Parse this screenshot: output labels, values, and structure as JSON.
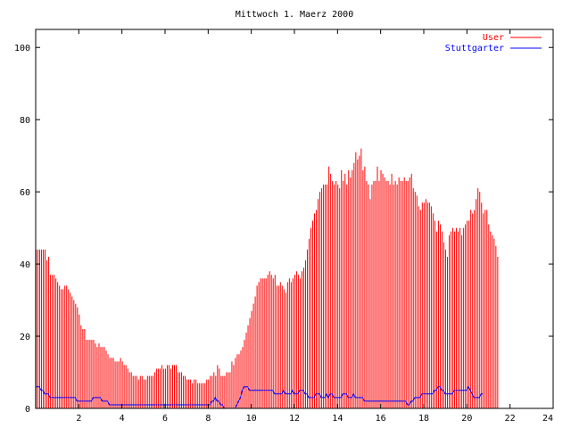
{
  "chart_data": {
    "type": "bar",
    "title": "Mittwoch 1. Maerz 2000",
    "xlabel": "",
    "ylabel": "",
    "xlim": [
      0,
      24
    ],
    "ylim": [
      0,
      105
    ],
    "x_ticks": [
      2,
      4,
      6,
      8,
      10,
      12,
      14,
      16,
      18,
      20,
      22,
      24
    ],
    "y_ticks": [
      0,
      20,
      40,
      60,
      80,
      100
    ],
    "grid": false,
    "legend_position": "top-right",
    "x_step_hours": 0.0833,
    "series": [
      {
        "name": "User",
        "render": "impulses",
        "color": "#ff0000",
        "values": [
          44,
          44,
          44,
          44,
          44,
          44,
          41,
          42,
          37,
          37,
          37,
          36,
          35,
          34,
          33,
          33,
          34,
          34,
          33,
          32,
          31,
          30,
          29,
          28,
          26,
          23,
          22,
          22,
          19,
          19,
          19,
          19,
          19,
          18,
          17,
          18,
          17,
          17,
          17,
          16,
          15,
          14,
          14,
          14,
          13,
          13,
          13,
          14,
          13,
          12,
          12,
          11,
          10,
          10,
          9,
          9,
          9,
          8,
          9,
          9,
          8,
          8,
          9,
          9,
          9,
          9,
          10,
          11,
          11,
          11,
          12,
          11,
          11,
          12,
          12,
          11,
          12,
          12,
          12,
          10,
          10,
          10,
          9,
          9,
          8,
          8,
          8,
          7,
          8,
          8,
          7,
          7,
          7,
          7,
          7,
          8,
          8,
          9,
          9,
          10,
          9,
          12,
          11,
          9,
          9,
          9,
          10,
          10,
          10,
          13,
          12,
          14,
          15,
          15,
          16,
          17,
          19,
          21,
          23,
          25,
          27,
          29,
          31,
          34,
          35,
          36,
          36,
          36,
          36,
          37,
          38,
          37,
          36,
          37,
          34,
          34,
          35,
          34,
          33,
          32,
          35,
          36,
          35,
          36,
          37,
          38,
          37,
          36,
          38,
          39,
          41,
          44,
          47,
          50,
          52,
          54,
          55,
          58,
          60,
          61,
          62,
          62,
          62,
          67,
          65,
          63,
          62,
          63,
          62,
          61,
          66,
          63,
          65,
          62,
          66,
          64,
          66,
          68,
          71,
          69,
          70,
          72,
          66,
          67,
          63,
          62,
          58,
          62,
          63,
          63,
          67,
          63,
          66,
          65,
          64,
          63,
          63,
          62,
          65,
          62,
          63,
          62,
          64,
          63,
          63,
          64,
          63,
          63,
          64,
          65,
          61,
          60,
          59,
          56,
          55,
          57,
          57,
          58,
          57,
          57,
          56,
          54,
          52,
          49,
          52,
          51,
          49,
          46,
          44,
          42,
          48,
          49,
          50,
          49,
          50,
          49,
          50,
          48,
          50,
          51,
          52,
          52,
          55,
          54,
          55,
          58,
          61,
          60,
          57,
          54,
          55,
          55,
          51,
          49,
          48,
          47,
          45,
          42
        ]
      },
      {
        "name": "Stuttgarter",
        "render": "line",
        "color": "#0000ff",
        "values": [
          6,
          6,
          6,
          5,
          5,
          4,
          4,
          4,
          3,
          3,
          3,
          3,
          3,
          3,
          3,
          3,
          3,
          3,
          3,
          3,
          3,
          3,
          3,
          2,
          2,
          2,
          2,
          2,
          2,
          2,
          2,
          2,
          3,
          3,
          3,
          3,
          3,
          2,
          2,
          2,
          2,
          1,
          1,
          1,
          1,
          1,
          1,
          1,
          1,
          1,
          1,
          1,
          1,
          1,
          1,
          1,
          1,
          1,
          1,
          1,
          1,
          1,
          1,
          1,
          1,
          1,
          1,
          1,
          1,
          1,
          1,
          1,
          1,
          1,
          1,
          1,
          1,
          1,
          1,
          1,
          1,
          1,
          1,
          1,
          1,
          1,
          1,
          1,
          1,
          1,
          1,
          1,
          1,
          1,
          1,
          1,
          1,
          1,
          2,
          2,
          3,
          2,
          2,
          1,
          1,
          0,
          0,
          0,
          0,
          0,
          0,
          0,
          1,
          2,
          3,
          5,
          6,
          6,
          6,
          5,
          5,
          5,
          5,
          5,
          5,
          5,
          5,
          5,
          5,
          5,
          5,
          5,
          5,
          4,
          4,
          4,
          4,
          4,
          5,
          4,
          4,
          4,
          4,
          5,
          4,
          4,
          4,
          5,
          5,
          5,
          4,
          4,
          3,
          3,
          3,
          3,
          4,
          4,
          4,
          3,
          3,
          3,
          4,
          3,
          4,
          4,
          3,
          3,
          3,
          3,
          3,
          4,
          4,
          4,
          3,
          3,
          3,
          4,
          3,
          3,
          3,
          3,
          3,
          2,
          2,
          2,
          2,
          2,
          2,
          2,
          2,
          2,
          2,
          2,
          2,
          2,
          2,
          2,
          2,
          2,
          2,
          2,
          2,
          2,
          2,
          2,
          2,
          1,
          1,
          2,
          2,
          3,
          3,
          3,
          3,
          4,
          4,
          4,
          4,
          4,
          4,
          4,
          5,
          5,
          6,
          6,
          5,
          5,
          4,
          4,
          4,
          4,
          4,
          5,
          5,
          5,
          5,
          5,
          5,
          5,
          5,
          6,
          5,
          4,
          3,
          3,
          3,
          3,
          4,
          4
        ]
      }
    ]
  }
}
